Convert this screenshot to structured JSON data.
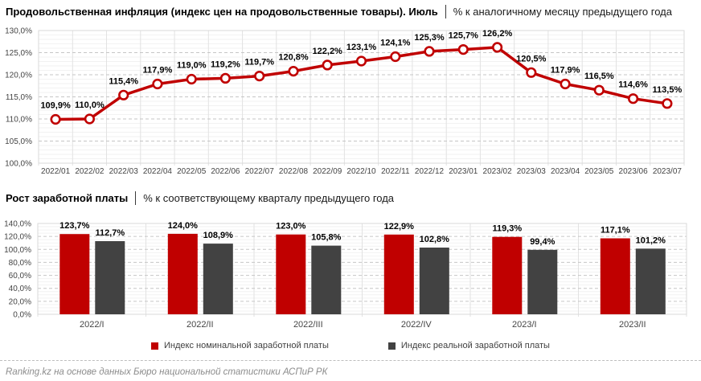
{
  "chart_data": [
    {
      "type": "line",
      "title": "Продовольственная инфляция (индекс цен на продовольственные товары). Июль",
      "subtitle": "% к аналогичному месяцу предыдущего года",
      "categories": [
        "2022/01",
        "2022/02",
        "2022/03",
        "2022/04",
        "2022/05",
        "2022/06",
        "2022/07",
        "2022/08",
        "2022/09",
        "2022/10",
        "2022/11",
        "2022/12",
        "2023/01",
        "2023/02",
        "2023/03",
        "2023/04",
        "2023/05",
        "2023/06",
        "2023/07"
      ],
      "values": [
        109.9,
        110.0,
        115.4,
        117.9,
        119.0,
        119.2,
        119.7,
        120.8,
        122.2,
        123.1,
        124.1,
        125.3,
        125.7,
        126.2,
        120.5,
        117.9,
        116.5,
        114.6,
        113.5
      ],
      "ylim": [
        100,
        130
      ],
      "ytick_step": 5,
      "ytick_labels": [
        "100,0%",
        "105,0%",
        "110,0%",
        "115,0%",
        "120,0%",
        "125,0%",
        "130,0%"
      ],
      "line_color": "#c00000",
      "marker_style": "circle-white-fill-red-ring",
      "grid": "horizontal major dashed, horizontal minor light, vertical category lines",
      "legend_position": "none"
    },
    {
      "type": "bar",
      "title": "Рост заработной платы",
      "subtitle": "% к соответствующему кварталу предыдущего года",
      "categories": [
        "2022/I",
        "2022/II",
        "2022/III",
        "2022/IV",
        "2023/I",
        "2023/II"
      ],
      "series": [
        {
          "name": "Индекс номинальной заработной платы",
          "color": "#c00000",
          "values": [
            123.7,
            124.0,
            123.0,
            122.9,
            119.3,
            117.1
          ]
        },
        {
          "name": "Индекс реальной заработной платы",
          "color": "#424242",
          "values": [
            112.7,
            108.9,
            105.8,
            102.8,
            99.4,
            101.2
          ]
        }
      ],
      "ylim": [
        0,
        140
      ],
      "ytick_step": 20,
      "ytick_labels": [
        "0,0%",
        "20,0%",
        "40,0%",
        "60,0%",
        "80,0%",
        "100,0%",
        "120,0%",
        "140,0%"
      ],
      "grid": "horizontal major dashed, horizontal minor light, vertical category lines",
      "legend_position": "bottom"
    }
  ],
  "footer": {
    "source": "Ranking.kz на основе данных Бюро национальной статистики АСПиР РК"
  }
}
